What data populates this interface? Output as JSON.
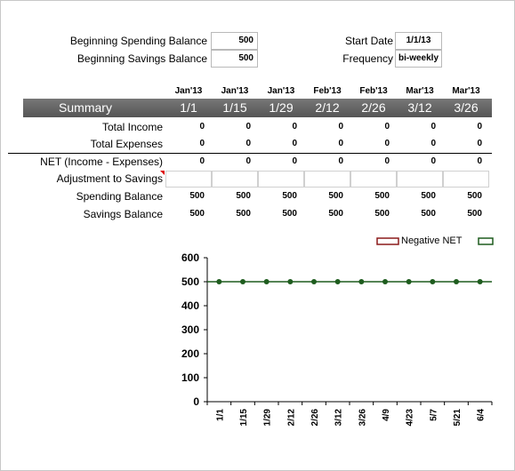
{
  "header": {
    "beginning_spending_label": "Beginning Spending Balance",
    "beginning_spending_value": "500",
    "beginning_savings_label": "Beginning Savings Balance",
    "beginning_savings_value": "500",
    "start_date_label": "Start Date",
    "start_date_value": "1/1/13",
    "frequency_label": "Frequency",
    "frequency_value": "bi-weekly"
  },
  "summary": {
    "title": "Summary",
    "months": [
      "Jan'13",
      "Jan'13",
      "Jan'13",
      "Feb'13",
      "Feb'13",
      "Mar'13",
      "Mar'13"
    ],
    "dates": [
      "1/1",
      "1/15",
      "1/29",
      "2/12",
      "2/26",
      "3/12",
      "3/26"
    ],
    "rows": [
      {
        "label": "Total Income",
        "values": [
          "0",
          "0",
          "0",
          "0",
          "0",
          "0",
          "0"
        ]
      },
      {
        "label": "Total Expenses",
        "values": [
          "0",
          "0",
          "0",
          "0",
          "0",
          "0",
          "0"
        ]
      },
      {
        "label": "NET (Income - Expenses)",
        "values": [
          "0",
          "0",
          "0",
          "0",
          "0",
          "0",
          "0"
        ]
      },
      {
        "label": "Adjustment to Savings",
        "values": [
          "",
          "",
          "",
          "",
          "",
          "",
          ""
        ]
      },
      {
        "label": "Spending Balance",
        "values": [
          "500",
          "500",
          "500",
          "500",
          "500",
          "500",
          "500"
        ]
      },
      {
        "label": "Savings Balance",
        "values": [
          "500",
          "500",
          "500",
          "500",
          "500",
          "500",
          "500"
        ]
      }
    ]
  },
  "colors": {
    "summary_bar": "#5f5f5f",
    "series_line": "#1e5c1e",
    "negative_net": "#8b1a1a",
    "comment_marker": "#dd0000"
  },
  "chart_data": {
    "type": "line",
    "legend": [
      "Negative NET",
      ""
    ],
    "legend_position": "top-right",
    "x": [
      "1/1",
      "1/15",
      "1/29",
      "2/12",
      "2/26",
      "3/12",
      "3/26",
      "4/9",
      "4/23",
      "5/7",
      "5/21",
      "6/4"
    ],
    "series": [
      {
        "values": [
          500,
          500,
          500,
          500,
          500,
          500,
          500,
          500,
          500,
          500,
          500,
          500
        ]
      }
    ],
    "ylim": [
      0,
      600
    ],
    "yticks": [
      0,
      100,
      200,
      300,
      400,
      500,
      600
    ],
    "grid": false
  }
}
